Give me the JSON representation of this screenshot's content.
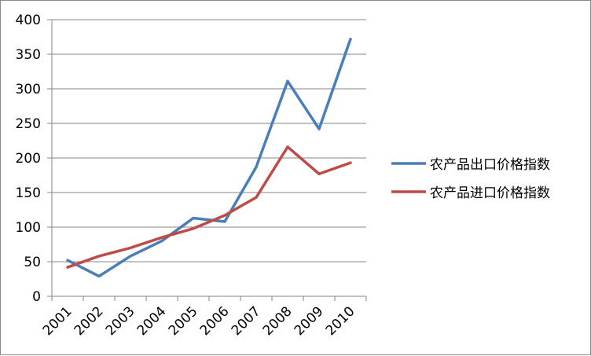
{
  "chart_data": {
    "type": "line",
    "title": "",
    "xlabel": "",
    "ylabel": "",
    "categories": [
      "2001",
      "2002",
      "2003",
      "2004",
      "2005",
      "2006",
      "2007",
      "2008",
      "2009",
      "2010"
    ],
    "ylim": [
      0,
      400
    ],
    "yticks": [
      0,
      50,
      100,
      150,
      200,
      250,
      300,
      350,
      400
    ],
    "grid": "horizontal",
    "legend_position": "right",
    "series": [
      {
        "name": "农产品出口价格指数",
        "color": "#4a7ebb",
        "values": [
          52,
          29,
          58,
          80,
          113,
          108,
          187,
          311,
          242,
          372
        ]
      },
      {
        "name": "农产品进口价格指数",
        "color": "#be4b48",
        "values": [
          42,
          58,
          70,
          85,
          98,
          117,
          143,
          216,
          177,
          193
        ]
      }
    ]
  }
}
